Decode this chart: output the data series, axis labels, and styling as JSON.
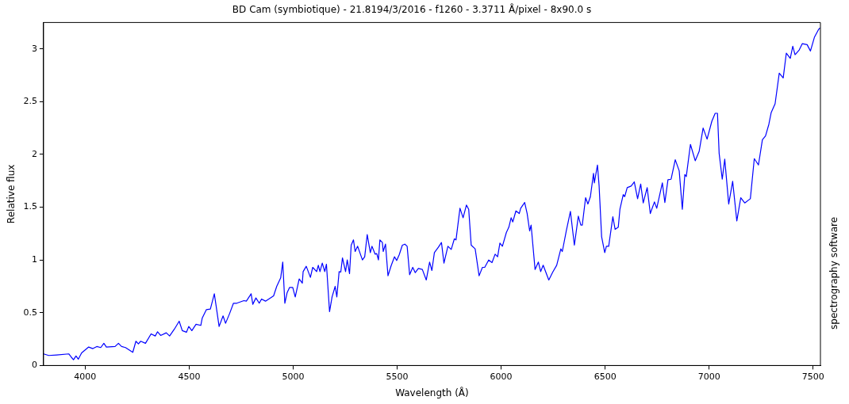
{
  "chart_data": {
    "type": "line",
    "title": "BD Cam (symbiotique) - 21.8194/3/2016 - f1260 - 3.3711 Å/pixel - 8x90.0 s",
    "xlabel": "Wavelength (Å)",
    "ylabel": "Relative flux",
    "annotations": [
      "spectrography software"
    ],
    "xlim": [
      3800,
      7535
    ],
    "ylim": [
      0,
      3.25
    ],
    "xticks": [
      4000,
      4500,
      5000,
      5500,
      6000,
      6500,
      7000,
      7500
    ],
    "yticks": [
      0,
      0.5,
      1,
      1.5,
      2,
      2.5,
      3
    ],
    "grid": false,
    "legend": false,
    "marker": "none",
    "line_style": "solid",
    "series": [
      {
        "color": "#0000ff",
        "x": [
          3800,
          3825,
          3863,
          3921,
          3933,
          3944,
          3956,
          3967,
          3983,
          4017,
          4037,
          4056,
          4075,
          4090,
          4102,
          4144,
          4160,
          4175,
          4194,
          4229,
          4244,
          4256,
          4267,
          4290,
          4317,
          4337,
          4348,
          4363,
          4390,
          4406,
          4429,
          4452,
          4467,
          4487,
          4498,
          4513,
          4533,
          4556,
          4563,
          4583,
          4602,
          4621,
          4630,
          4644,
          4663,
          4675,
          4694,
          4713,
          4729,
          4763,
          4775,
          4798,
          4806,
          4821,
          4837,
          4848,
          4867,
          4906,
          4921,
          4940,
          4950,
          4960,
          4971,
          4983,
          4998,
          5010,
          5029,
          5044,
          5048,
          5063,
          5083,
          5094,
          5113,
          5121,
          5129,
          5140,
          5152,
          5160,
          5175,
          5187,
          5202,
          5210,
          5221,
          5229,
          5237,
          5252,
          5260,
          5271,
          5279,
          5290,
          5298,
          5310,
          5317,
          5333,
          5344,
          5356,
          5371,
          5379,
          5394,
          5402,
          5410,
          5417,
          5429,
          5433,
          5444,
          5456,
          5471,
          5487,
          5498,
          5510,
          5525,
          5537,
          5548,
          5560,
          5575,
          5587,
          5602,
          5621,
          5640,
          5656,
          5667,
          5679,
          5698,
          5713,
          5725,
          5744,
          5760,
          5775,
          5783,
          5802,
          5817,
          5833,
          5844,
          5856,
          5875,
          5894,
          5910,
          5921,
          5940,
          5956,
          5971,
          5983,
          5994,
          6006,
          6025,
          6037,
          6048,
          6056,
          6071,
          6087,
          6094,
          6113,
          6125,
          6137,
          6144,
          6163,
          6179,
          6190,
          6202,
          6229,
          6248,
          6267,
          6287,
          6294,
          6313,
          6333,
          6352,
          6371,
          6383,
          6390,
          6406,
          6417,
          6429,
          6444,
          6448,
          6463,
          6471,
          6483,
          6498,
          6506,
          6517,
          6537,
          6548,
          6563,
          6571,
          6587,
          6594,
          6606,
          6625,
          6640,
          6656,
          6671,
          6683,
          6702,
          6717,
          6737,
          6748,
          6775,
          6787,
          6802,
          6817,
          6837,
          6856,
          6871,
          6883,
          6890,
          6910,
          6933,
          6952,
          6971,
          6990,
          7013,
          7029,
          7040,
          7048,
          7063,
          7075,
          7094,
          7113,
          7133,
          7152,
          7171,
          7198,
          7217,
          7237,
          7256,
          7271,
          7287,
          7298,
          7317,
          7337,
          7356,
          7371,
          7390,
          7402,
          7413,
          7433,
          7448,
          7471,
          7487,
          7506,
          7525,
          7533
        ],
        "values": [
          0.11,
          0.095,
          0.1,
          0.11,
          0.08,
          0.055,
          0.09,
          0.06,
          0.12,
          0.175,
          0.16,
          0.18,
          0.17,
          0.21,
          0.175,
          0.18,
          0.21,
          0.18,
          0.17,
          0.125,
          0.23,
          0.205,
          0.23,
          0.21,
          0.3,
          0.28,
          0.32,
          0.285,
          0.31,
          0.28,
          0.345,
          0.42,
          0.33,
          0.315,
          0.37,
          0.33,
          0.39,
          0.38,
          0.45,
          0.53,
          0.535,
          0.68,
          0.56,
          0.37,
          0.47,
          0.4,
          0.49,
          0.59,
          0.59,
          0.615,
          0.61,
          0.68,
          0.58,
          0.64,
          0.59,
          0.63,
          0.61,
          0.66,
          0.75,
          0.83,
          0.98,
          0.59,
          0.69,
          0.74,
          0.74,
          0.65,
          0.82,
          0.78,
          0.89,
          0.94,
          0.835,
          0.93,
          0.89,
          0.95,
          0.89,
          0.97,
          0.89,
          0.96,
          0.51,
          0.65,
          0.75,
          0.65,
          0.89,
          0.885,
          1.02,
          0.89,
          1.0,
          0.87,
          1.14,
          1.19,
          1.08,
          1.13,
          1.09,
          1.0,
          1.03,
          1.24,
          1.07,
          1.13,
          1.055,
          1.06,
          1.0,
          1.19,
          1.165,
          1.08,
          1.15,
          0.85,
          0.945,
          1.03,
          0.995,
          1.05,
          1.14,
          1.15,
          1.13,
          0.86,
          0.93,
          0.88,
          0.92,
          0.91,
          0.81,
          0.98,
          0.9,
          1.07,
          1.12,
          1.165,
          0.97,
          1.13,
          1.1,
          1.2,
          1.19,
          1.49,
          1.4,
          1.52,
          1.48,
          1.14,
          1.105,
          0.85,
          0.93,
          0.93,
          1.0,
          0.975,
          1.055,
          1.03,
          1.16,
          1.13,
          1.26,
          1.31,
          1.4,
          1.36,
          1.465,
          1.44,
          1.49,
          1.545,
          1.44,
          1.275,
          1.33,
          0.91,
          0.98,
          0.89,
          0.95,
          0.81,
          0.885,
          0.95,
          1.105,
          1.08,
          1.275,
          1.46,
          1.14,
          1.415,
          1.33,
          1.33,
          1.59,
          1.53,
          1.6,
          1.82,
          1.73,
          1.9,
          1.7,
          1.22,
          1.07,
          1.13,
          1.13,
          1.41,
          1.29,
          1.31,
          1.48,
          1.62,
          1.6,
          1.685,
          1.7,
          1.74,
          1.58,
          1.72,
          1.54,
          1.685,
          1.44,
          1.55,
          1.49,
          1.73,
          1.545,
          1.76,
          1.765,
          1.95,
          1.845,
          1.48,
          1.81,
          1.79,
          2.095,
          1.94,
          2.03,
          2.25,
          2.145,
          2.315,
          2.39,
          2.39,
          2.01,
          1.765,
          1.955,
          1.53,
          1.745,
          1.37,
          1.59,
          1.54,
          1.58,
          1.96,
          1.9,
          2.14,
          2.175,
          2.285,
          2.395,
          2.48,
          2.77,
          2.725,
          2.96,
          2.91,
          3.025,
          2.945,
          2.99,
          3.05,
          3.04,
          2.98,
          3.11,
          3.18,
          3.2
        ]
      }
    ]
  }
}
